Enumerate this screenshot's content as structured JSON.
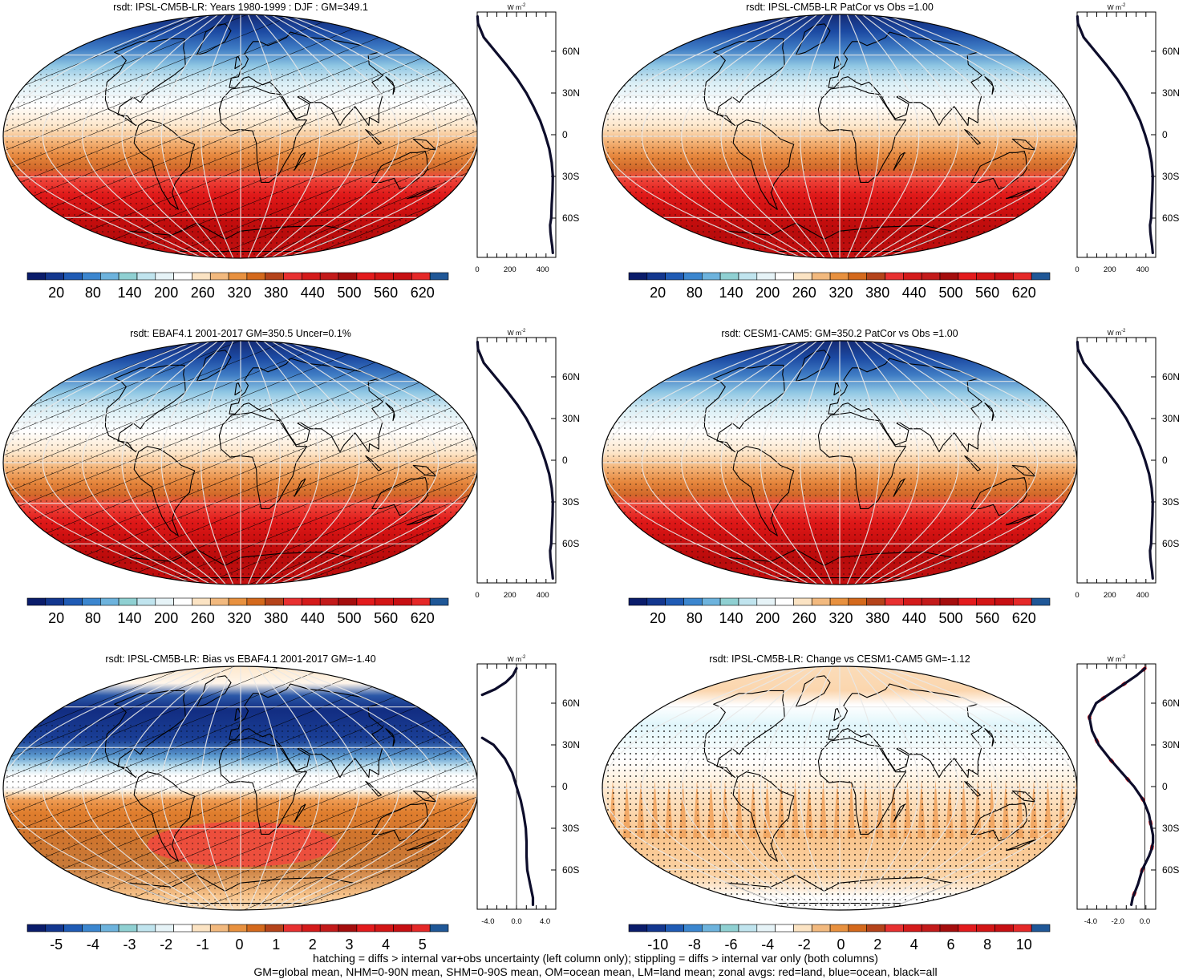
{
  "colors": {
    "absolute_palette": [
      "#0a1c6b",
      "#13378f",
      "#1f5bb5",
      "#3b86cf",
      "#6db3dd",
      "#8fd0d2",
      "#c0e4ee",
      "#e6f3f7",
      "#ffffff",
      "#fbe3c3",
      "#f2b97e",
      "#e8913f",
      "#d4691c",
      "#b5431a",
      "#e83030",
      "#d41a1a",
      "#c31a1a",
      "#a50d0d",
      "#e31a1c",
      "#d31515",
      "#c70f12",
      "#e52828",
      "#1f5797"
    ],
    "difference_palette": [
      "#0a1c6b",
      "#13378f",
      "#1f5bb5",
      "#3b86cf",
      "#6db3dd",
      "#8fd0d2",
      "#c0e4ee",
      "#e6f3f7",
      "#ffffff",
      "#fbe3c3",
      "#f2b97e",
      "#e8913f",
      "#d4691c",
      "#b5431a",
      "#e83030",
      "#d41a1a",
      "#c31a1a",
      "#a50d0d",
      "#e31a1c",
      "#d31515",
      "#c70f12",
      "#e52828",
      "#1f5797"
    ],
    "zonal_line": "#0d0d2b",
    "zonal_land": "#dd2020"
  },
  "chart_data": [
    {
      "type": "heatmap",
      "title": "rsdt: IPSL-CM5B-LR: Years 1980-1999 : DJF : GM=349.1",
      "field": "absolute",
      "hatching": true,
      "colorbar": {
        "labels": [
          "20",
          "80",
          "140",
          "200",
          "260",
          "320",
          "380",
          "440",
          "500",
          "560",
          "620"
        ]
      },
      "zonal": {
        "unit": "W m",
        "unit_sup": "-2",
        "x_ticks": [
          "0",
          "200",
          "400"
        ],
        "xlim": [
          0,
          480
        ],
        "lat_labels": [
          "60N",
          "30N",
          "0",
          "30S",
          "60S"
        ],
        "lat": [
          85,
          80,
          70,
          60,
          50,
          40,
          30,
          20,
          10,
          0,
          -10,
          -20,
          -30,
          -40,
          -50,
          -60,
          -65,
          -70,
          -75,
          -80,
          -85
        ],
        "values": [
          2,
          5,
          40,
          110,
          180,
          245,
          300,
          345,
          385,
          415,
          440,
          455,
          462,
          460,
          455,
          452,
          445,
          447,
          452,
          458,
          462
        ]
      }
    },
    {
      "type": "heatmap",
      "title": "rsdt: IPSL-CM5B-LR PatCor vs Obs =1.00",
      "field": "absolute",
      "hatching": false,
      "colorbar": {
        "labels": [
          "20",
          "80",
          "140",
          "200",
          "260",
          "320",
          "380",
          "440",
          "500",
          "560",
          "620"
        ]
      },
      "zonal": {
        "unit": "W m",
        "unit_sup": "-2",
        "x_ticks": [
          "0",
          "200",
          "400"
        ],
        "xlim": [
          0,
          480
        ],
        "lat_labels": [
          "60N",
          "30N",
          "0",
          "30S",
          "60S"
        ],
        "lat": [
          85,
          80,
          70,
          60,
          50,
          40,
          30,
          20,
          10,
          0,
          -10,
          -20,
          -30,
          -40,
          -50,
          -60,
          -65,
          -70,
          -75,
          -80,
          -85
        ],
        "values": [
          2,
          5,
          40,
          110,
          180,
          245,
          300,
          345,
          385,
          415,
          440,
          455,
          462,
          460,
          455,
          452,
          445,
          447,
          452,
          458,
          462
        ]
      }
    },
    {
      "type": "heatmap",
      "title": "rsdt: EBAF4.1 2001-2017 GM=350.5 Uncer=0.1%",
      "field": "absolute",
      "hatching": true,
      "colorbar": {
        "labels": [
          "20",
          "80",
          "140",
          "200",
          "260",
          "320",
          "380",
          "440",
          "500",
          "560",
          "620"
        ]
      },
      "zonal": {
        "unit": "W m",
        "unit_sup": "-2",
        "x_ticks": [
          "0",
          "200",
          "400"
        ],
        "xlim": [
          0,
          480
        ],
        "lat_labels": [
          "60N",
          "30N",
          "0",
          "30S",
          "60S"
        ],
        "lat": [
          85,
          80,
          70,
          60,
          50,
          40,
          30,
          20,
          10,
          0,
          -10,
          -20,
          -30,
          -40,
          -50,
          -60,
          -65,
          -70,
          -75,
          -80,
          -85
        ],
        "values": [
          2,
          5,
          40,
          110,
          180,
          245,
          300,
          345,
          385,
          415,
          440,
          455,
          462,
          460,
          455,
          452,
          445,
          447,
          452,
          458,
          462
        ]
      }
    },
    {
      "type": "heatmap",
      "title": "rsdt: CESM1-CAM5: GM=350.2 PatCor vs Obs =1.00",
      "field": "absolute",
      "hatching": false,
      "colorbar": {
        "labels": [
          "20",
          "80",
          "140",
          "200",
          "260",
          "320",
          "380",
          "440",
          "500",
          "560",
          "620"
        ]
      },
      "zonal": {
        "unit": "W m",
        "unit_sup": "-2",
        "x_ticks": [
          "0",
          "200",
          "400"
        ],
        "xlim": [
          0,
          480
        ],
        "lat_labels": [
          "60N",
          "30N",
          "0",
          "30S",
          "60S"
        ],
        "lat": [
          85,
          80,
          70,
          60,
          50,
          40,
          30,
          20,
          10,
          0,
          -10,
          -20,
          -30,
          -40,
          -50,
          -60,
          -65,
          -70,
          -75,
          -80,
          -85
        ],
        "values": [
          2,
          5,
          40,
          110,
          180,
          245,
          300,
          345,
          385,
          415,
          440,
          455,
          462,
          460,
          455,
          452,
          445,
          447,
          452,
          458,
          462
        ]
      }
    },
    {
      "type": "heatmap",
      "title": "rsdt: IPSL-CM5B-LR: Bias vs EBAF4.1 2001-2017 GM=-1.40",
      "field": "bias",
      "hatching": true,
      "colorbar": {
        "labels": [
          "-5",
          "-4",
          "-3",
          "-2",
          "-1",
          "0",
          "1",
          "2",
          "3",
          "4",
          "5"
        ]
      },
      "zonal": {
        "unit": "W m",
        "unit_sup": "-2",
        "x_ticks": [
          "-4.0",
          "0.0",
          "4.0"
        ],
        "xlim": [
          -5.5,
          5.5
        ],
        "lat_labels": [
          "60N",
          "30N",
          "0",
          "30S",
          "60S"
        ],
        "lat": [
          85,
          80,
          75,
          70,
          66,
          35,
          30,
          20,
          10,
          0,
          -10,
          -20,
          -30,
          -40,
          -50,
          -60,
          -70,
          -80,
          -85
        ],
        "values": [
          0,
          -0.5,
          -1.5,
          -3.0,
          -4.8,
          -4.8,
          -3.2,
          -1.6,
          -0.6,
          0.0,
          0.6,
          1.0,
          1.3,
          1.4,
          1.4,
          1.5,
          1.9,
          2.3,
          2.3
        ],
        "gap": [
          4,
          5
        ]
      }
    },
    {
      "type": "heatmap",
      "title": "rsdt: IPSL-CM5B-LR: Change vs CESM1-CAM5 GM=-1.12",
      "field": "change",
      "hatching": false,
      "colorbar": {
        "labels": [
          "-10",
          "-8",
          "-6",
          "-4",
          "-2",
          "0",
          "2",
          "4",
          "6",
          "8",
          "10"
        ]
      },
      "zonal": {
        "unit": "W m",
        "unit_sup": "-2",
        "x_ticks": [
          "-4.0",
          "-2.0",
          "0.0"
        ],
        "xlim": [
          -5.0,
          0.8
        ],
        "lat_labels": [
          "60N",
          "30N",
          "0",
          "30S",
          "60S"
        ],
        "lat": [
          85,
          80,
          70,
          60,
          50,
          40,
          30,
          20,
          10,
          0,
          -10,
          -20,
          -30,
          -35,
          -40,
          -45,
          -50,
          -60,
          -70,
          -80,
          -85
        ],
        "values": [
          0,
          -0.6,
          -2.1,
          -3.6,
          -4.1,
          -3.9,
          -3.4,
          -2.6,
          -1.7,
          -0.8,
          -0.1,
          0.3,
          0.5,
          0.6,
          0.6,
          0.5,
          0.3,
          -0.2,
          -0.5,
          -0.9,
          -1.0
        ]
      }
    }
  ],
  "footer": {
    "line1": "hatching = diffs > internal var+obs uncertainty (left column only); stippling = diffs > internal var only (both columns)",
    "line2": "GM=global mean, NHM=0-90N mean, SHM=0-90S mean, OM=ocean mean, LM=land mean; zonal avgs: red=land, blue=ocean, black=all"
  }
}
